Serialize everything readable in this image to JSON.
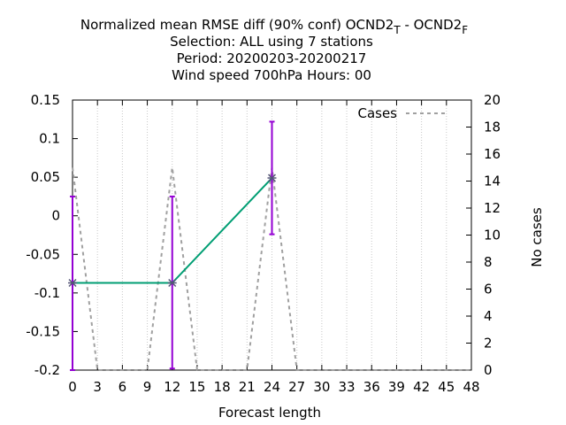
{
  "chart_data": {
    "type": "line",
    "title": {
      "line1_prefix": "Normalized mean RMSE diff (90% conf) OCND2",
      "line1_sub1": "T",
      "line1_mid": " - OCND2",
      "line1_sub2": "F",
      "line2": "Selection: ALL using     7 stations",
      "line3": "Period: 20200203-20200217",
      "line4": "Wind speed 700hPa   Hours:  00"
    },
    "xlabel": "Forecast length",
    "ylabel": "",
    "y2label": "No cases",
    "xlim": [
      0,
      48
    ],
    "ylim": [
      -0.2,
      0.15
    ],
    "y2lim": [
      0,
      20
    ],
    "x_ticks": [
      0,
      3,
      6,
      9,
      12,
      15,
      18,
      21,
      24,
      27,
      30,
      33,
      36,
      39,
      42,
      45,
      48
    ],
    "y_ticks": [
      -0.2,
      -0.15,
      -0.1,
      -0.05,
      0,
      0.05,
      0.1,
      0.15
    ],
    "y_tick_labels": [
      "-0.2",
      "-0.15",
      "-0.1",
      "-0.05",
      "0",
      "0.05",
      "0.1",
      "0.15"
    ],
    "y2_ticks": [
      0,
      2,
      4,
      6,
      8,
      10,
      12,
      14,
      16,
      18,
      20
    ],
    "legend": {
      "position": "top-right",
      "entries": [
        "Cases"
      ]
    },
    "series": [
      {
        "name": "",
        "axis": "y",
        "color": "#009e73",
        "x": [
          0,
          12,
          24
        ],
        "y": [
          -0.087,
          -0.087,
          0.049
        ]
      },
      {
        "name": "Cases",
        "axis": "y2",
        "color": "#a0a0a0",
        "dashed": true,
        "x": [
          0,
          3,
          9,
          12,
          15,
          21,
          24,
          27,
          48
        ],
        "y": [
          15,
          0,
          0,
          15,
          0,
          0,
          15,
          0,
          0
        ]
      }
    ],
    "error_bars": {
      "color": "#9400d3",
      "x": [
        0,
        12,
        24
      ],
      "low": [
        -0.2,
        -0.198,
        -0.024
      ],
      "high": [
        0.025,
        0.025,
        0.122
      ]
    },
    "grid": {
      "x": true,
      "y": false
    },
    "grid_color": "#c8c8c8"
  }
}
